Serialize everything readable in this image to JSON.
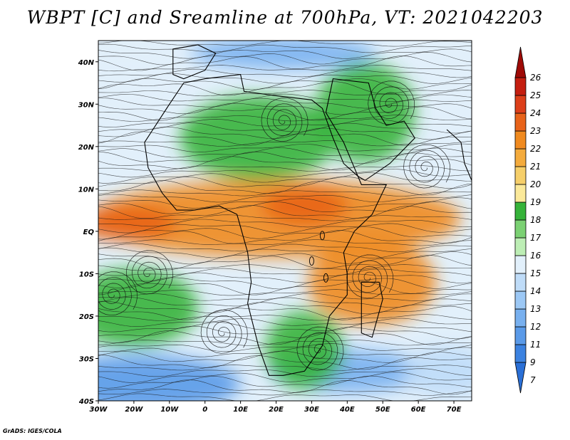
{
  "title": "WBPT [C] and Sreamline at 700hPa, VT: 2021042203",
  "credit": "GrADS: IGES/COLA",
  "map": {
    "lon_range": [
      -30,
      75
    ],
    "lat_range": [
      -40,
      45
    ],
    "lon_ticks": [
      {
        "value": -30,
        "label": "30W"
      },
      {
        "value": -20,
        "label": "20W"
      },
      {
        "value": -10,
        "label": "10W"
      },
      {
        "value": 0,
        "label": "0"
      },
      {
        "value": 10,
        "label": "10E"
      },
      {
        "value": 20,
        "label": "20E"
      },
      {
        "value": 30,
        "label": "30E"
      },
      {
        "value": 40,
        "label": "40E"
      },
      {
        "value": 50,
        "label": "50E"
      },
      {
        "value": 60,
        "label": "60E"
      },
      {
        "value": 70,
        "label": "70E"
      }
    ],
    "lat_ticks": [
      {
        "value": 40,
        "label": "40N"
      },
      {
        "value": 30,
        "label": "30N"
      },
      {
        "value": 20,
        "label": "20N"
      },
      {
        "value": 10,
        "label": "10N"
      },
      {
        "value": 0,
        "label": "EQ"
      },
      {
        "value": -10,
        "label": "10S"
      },
      {
        "value": -20,
        "label": "20S"
      },
      {
        "value": -30,
        "label": "30S"
      },
      {
        "value": -40,
        "label": "40S"
      }
    ],
    "features": [
      {
        "name": "tropical-warm-band",
        "lon": 20,
        "lat": 3,
        "wbpt": 21
      },
      {
        "name": "atlantic-equatorial-max",
        "lon": -22,
        "lat": 2,
        "wbpt": 22
      },
      {
        "name": "central-africa-max",
        "lon": 28,
        "lat": 6,
        "wbpt": 22
      },
      {
        "name": "madagascar-warm-eddy",
        "lon": 47,
        "lat": -12,
        "wbpt": 21
      },
      {
        "name": "sahara-green",
        "lon": 15,
        "lat": 22,
        "wbpt": 17
      },
      {
        "name": "arabia-green",
        "lon": 45,
        "lat": 28,
        "wbpt": 17
      },
      {
        "name": "north-atlantic-cool",
        "lon": -22,
        "lat": 35,
        "wbpt": 14
      },
      {
        "name": "mediterranean-cold",
        "lon": 22,
        "lat": 42,
        "wbpt": 11
      },
      {
        "name": "south-atlantic-cold",
        "lon": -18,
        "lat": -36,
        "wbpt": 10
      },
      {
        "name": "southern-ocean-cold",
        "lon": 40,
        "lat": -33,
        "wbpt": 11
      },
      {
        "name": "south-atlantic-green",
        "lon": -20,
        "lat": -18,
        "wbpt": 17
      },
      {
        "name": "southern-africa-green",
        "lon": 28,
        "lat": -28,
        "wbpt": 17
      },
      {
        "name": "indian-ocean-south-cool",
        "lon": 68,
        "lat": -33,
        "wbpt": 13
      }
    ],
    "vortices": [
      {
        "lon": -26,
        "lat": -15
      },
      {
        "lon": -16,
        "lat": -10
      },
      {
        "lon": 46,
        "lat": -11
      },
      {
        "lon": 32,
        "lat": -28
      },
      {
        "lon": 22,
        "lat": 26
      },
      {
        "lon": 52,
        "lat": 30
      },
      {
        "lon": 62,
        "lat": 15
      },
      {
        "lon": 5,
        "lat": -24
      }
    ]
  },
  "colorbar": {
    "levels": [
      "7",
      "9",
      "11",
      "12",
      "13",
      "14",
      "15",
      "16",
      "17",
      "18",
      "19",
      "20",
      "21",
      "22",
      "23",
      "24",
      "25",
      "26"
    ],
    "colors": [
      "#2a6fd6",
      "#3c82e0",
      "#5a9ae8",
      "#78b0ef",
      "#9cc8f5",
      "#bfdcf8",
      "#e2f0fb",
      "#bdeeb5",
      "#7bd173",
      "#36b33a",
      "#fbe99a",
      "#f6cf6a",
      "#f4ab3d",
      "#f08a1f",
      "#e8631a",
      "#dc3f1a",
      "#c41e10",
      "#9e0a06"
    ]
  }
}
